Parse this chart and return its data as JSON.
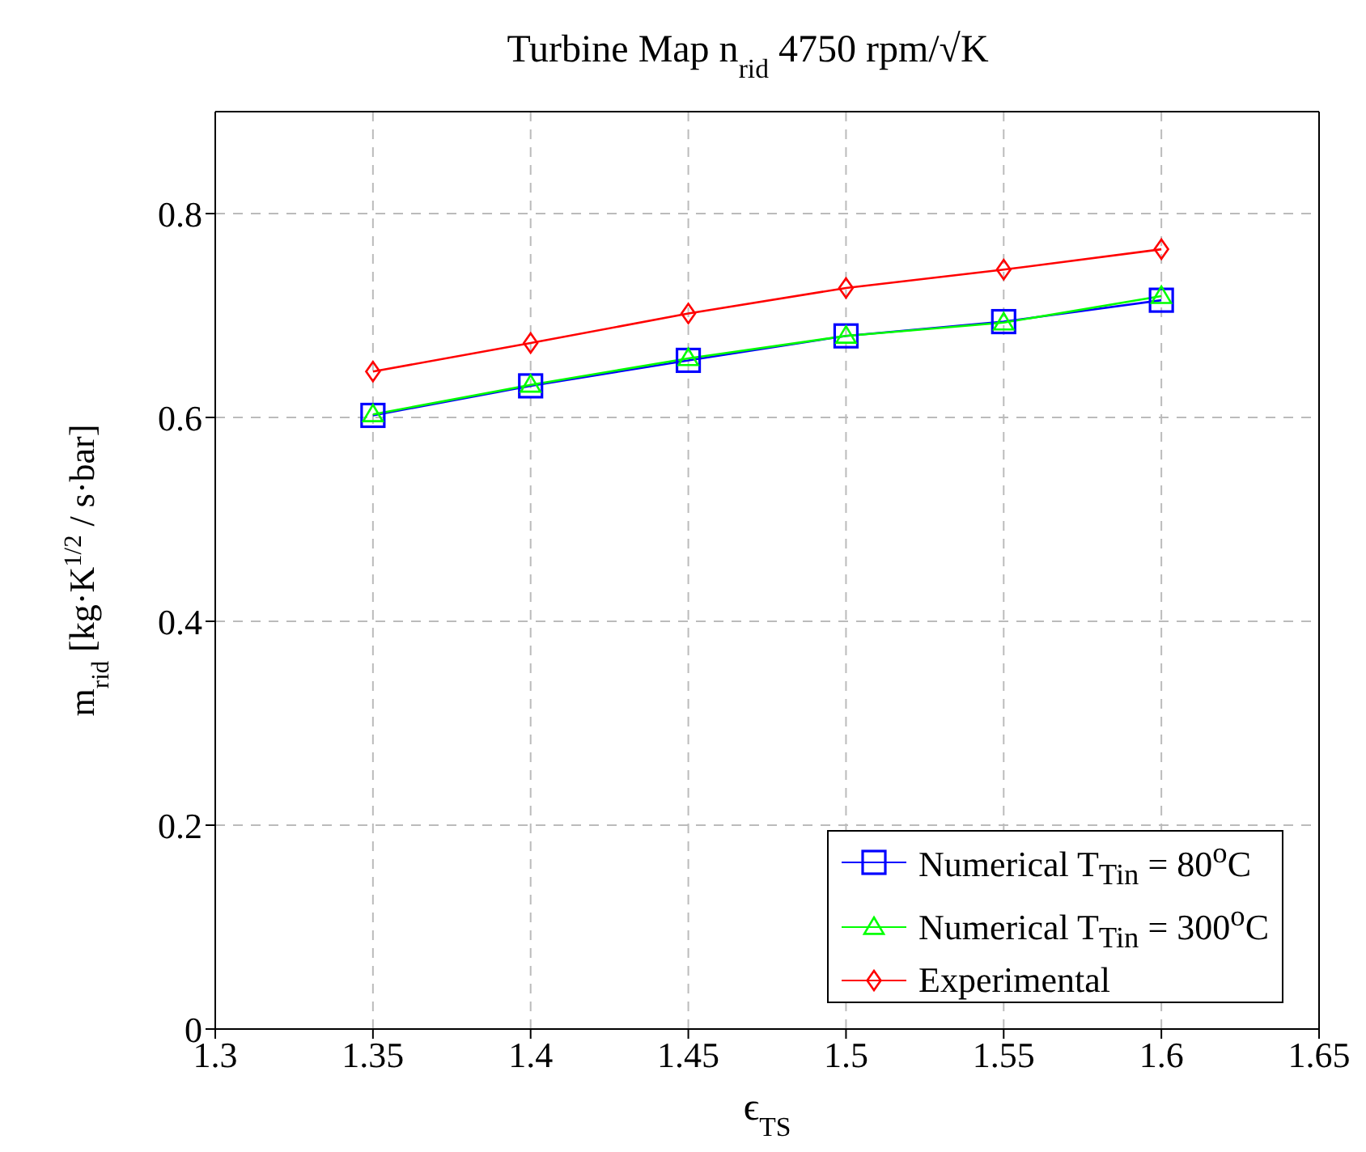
{
  "chart_data": {
    "type": "line",
    "title": "Turbine Map n$_{rid}$ 4750 rpm/√K",
    "xlabel": "ϵ$_{TS}$",
    "ylabel": "m$_{rid}$ [kg·K$^{1/2}$ / s·bar]",
    "x": [
      1.35,
      1.4,
      1.45,
      1.5,
      1.55,
      1.6
    ],
    "series": [
      {
        "name": "Numerical T$_{Tin}$ = 80$^{o}$C",
        "color": "#0000ff",
        "marker": "square",
        "values": [
          0.602,
          0.631,
          0.656,
          0.68,
          0.694,
          0.715
        ]
      },
      {
        "name": "Numerical T$_{Tin}$ = 300$^{o}$C",
        "color": "#00ff00",
        "marker": "triangle",
        "values": [
          0.603,
          0.632,
          0.658,
          0.68,
          0.693,
          0.719
        ]
      },
      {
        "name": "Experimental",
        "color": "#ff0000",
        "marker": "diamond",
        "values": [
          0.645,
          0.673,
          0.702,
          0.727,
          0.745,
          0.765
        ]
      }
    ],
    "xlim": [
      1.3,
      1.65
    ],
    "xticks": [
      1.3,
      1.35,
      1.4,
      1.45,
      1.5,
      1.55,
      1.6,
      1.65
    ],
    "ylim": [
      0,
      0.9
    ],
    "yticks": [
      0,
      0.2,
      0.4,
      0.6,
      0.8
    ],
    "grid": true,
    "legend": "bottom right",
    "line_style": "solid"
  }
}
